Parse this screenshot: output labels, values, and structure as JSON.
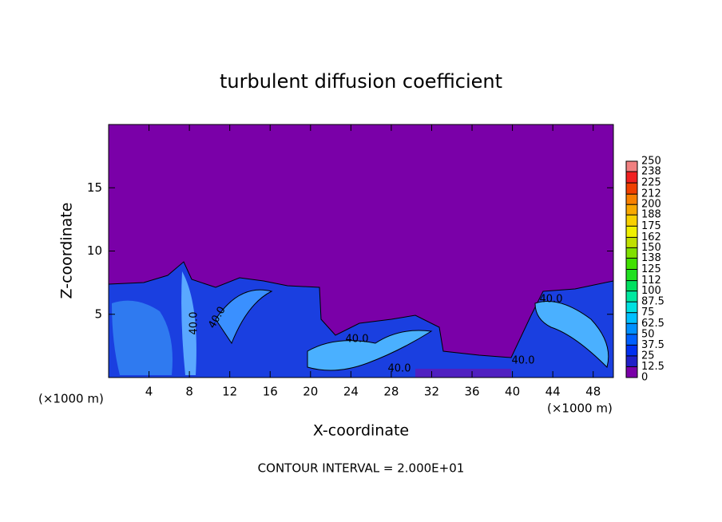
{
  "chart_data": {
    "type": "contour",
    "title": "turbulent diffusion coefficient",
    "xlabel": "X-coordinate",
    "ylabel": "Z-coordinate",
    "x_unit_label": "(×1000 m)",
    "footer": "CONTOUR INTERVAL = 2.000E+01",
    "xlim": [
      0,
      50
    ],
    "xticks": [
      4,
      8,
      12,
      16,
      20,
      24,
      28,
      32,
      36,
      40,
      44,
      48
    ],
    "ylim": [
      0,
      20
    ],
    "yticks": [
      5,
      10,
      15
    ],
    "contour_labels": [
      {
        "value": 40,
        "label": "40.0"
      },
      {
        "value": 40,
        "label": "40.0"
      },
      {
        "value": 40,
        "label": "40.0"
      },
      {
        "value": 40,
        "label": "40.0"
      },
      {
        "value": 40,
        "label": "40.0"
      },
      {
        "value": 40,
        "label": "40.0"
      }
    ],
    "colorbar": {
      "lim": [
        0,
        250
      ],
      "ticks": [
        0,
        12.5,
        25,
        37.5,
        50,
        62.5,
        75,
        87.5,
        100,
        112,
        125,
        138,
        150,
        162,
        175,
        188,
        200,
        212,
        225,
        238,
        250
      ],
      "colors": [
        "#7a00a8",
        "#2020c8",
        "#0030f0",
        "#0060ff",
        "#0090ff",
        "#00c0ff",
        "#00e0e0",
        "#00e8a0",
        "#00e060",
        "#20e020",
        "#40e000",
        "#80e000",
        "#c0e000",
        "#f0f000",
        "#f8d000",
        "#f8a800",
        "#f88000",
        "#f04000",
        "#f02020",
        "#f08080"
      ]
    }
  }
}
